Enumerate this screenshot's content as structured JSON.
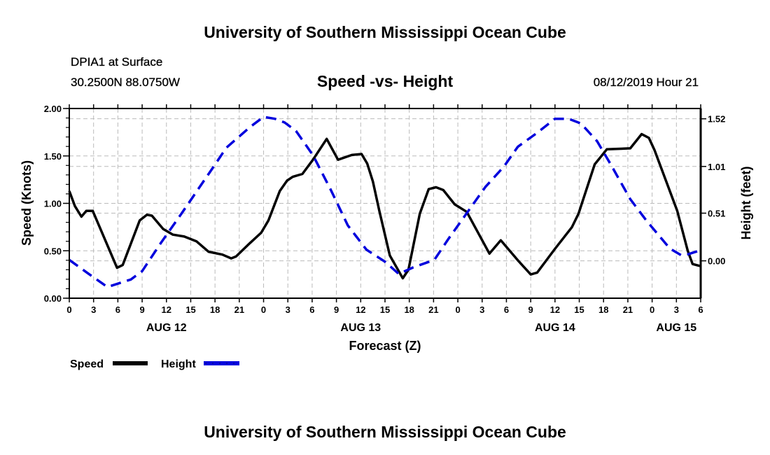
{
  "header": {
    "title": "University of Southern Mississippi Ocean Cube",
    "station": "DPIA1 at Surface",
    "location": "30.2500N 88.0750W",
    "subtitle": "Speed -vs- Height",
    "datetime": "08/12/2019 Hour 21"
  },
  "footer": {
    "title": "University of Southern Mississippi Ocean Cube"
  },
  "chart_data": {
    "type": "line",
    "title": "Speed -vs- Height",
    "xlabel": "Forecast (Z)",
    "ylabel": "Speed (Knots)",
    "y2label": "Height (feet)",
    "x_unit": "hours since AUG 12 00Z",
    "xlim": [
      0,
      78
    ],
    "ylim": [
      0,
      2.0
    ],
    "y2lim": [
      -0.4,
      1.63
    ],
    "grid": true,
    "legend_position": "bottom-left",
    "x_ticks": {
      "hours": [
        0,
        3,
        6,
        9,
        12,
        15,
        18,
        21,
        24,
        27,
        30,
        33,
        36,
        39,
        42,
        45,
        48,
        51,
        54,
        57,
        60,
        63,
        66,
        69,
        72,
        75,
        78
      ],
      "labels": [
        "0",
        "3",
        "6",
        "9",
        "12",
        "15",
        "18",
        "21",
        "0",
        "3",
        "6",
        "9",
        "12",
        "15",
        "18",
        "21",
        "0",
        "3",
        "6",
        "9",
        "12",
        "15",
        "18",
        "21",
        "0",
        "3",
        "6"
      ]
    },
    "day_labels": [
      {
        "label": "AUG 12",
        "hour": 12
      },
      {
        "label": "AUG 13",
        "hour": 36
      },
      {
        "label": "AUG 14",
        "hour": 60
      },
      {
        "label": "AUG 15",
        "hour": 75
      }
    ],
    "y_ticks": {
      "values": [
        0,
        0.5,
        1.0,
        1.5,
        2.0
      ],
      "labels": [
        "0.00",
        "0.50",
        "1.00",
        "1.50",
        "2.00"
      ]
    },
    "y2_ticks": {
      "values": [
        0,
        0.51,
        1.01,
        1.52
      ],
      "labels": [
        "0.00",
        "0.51",
        "1.01",
        "1.52"
      ]
    },
    "series": [
      {
        "name": "Speed",
        "axis": "left",
        "color": "#000000",
        "style": "solid",
        "x": [
          0,
          0.7,
          1.5,
          2.1,
          2.9,
          5.9,
          6.6,
          8.7,
          9.6,
          10.2,
          11.6,
          12.8,
          14.2,
          15.7,
          17.2,
          18.9,
          20.0,
          20.6,
          22.3,
          23.7,
          24.6,
          26.0,
          26.9,
          27.6,
          28.8,
          30.1,
          31.8,
          33.2,
          34.9,
          36.1,
          36.8,
          37.5,
          38.3,
          39.6,
          41.2,
          41.9,
          43.3,
          44.4,
          45.3,
          46.2,
          47.6,
          49.1,
          51.9,
          53.3,
          55.4,
          57.0,
          57.8,
          60.0,
          62.1,
          62.9,
          64.9,
          66.4,
          69.3,
          70.7,
          71.6,
          72.3,
          75.1,
          76.4,
          77.0,
          77.9
        ],
        "y": [
          1.13,
          0.97,
          0.86,
          0.92,
          0.92,
          0.32,
          0.35,
          0.82,
          0.88,
          0.87,
          0.73,
          0.67,
          0.65,
          0.6,
          0.49,
          0.46,
          0.42,
          0.44,
          0.58,
          0.69,
          0.82,
          1.13,
          1.24,
          1.28,
          1.31,
          1.46,
          1.68,
          1.46,
          1.51,
          1.52,
          1.42,
          1.23,
          0.92,
          0.45,
          0.21,
          0.3,
          0.89,
          1.15,
          1.17,
          1.14,
          0.99,
          0.91,
          0.47,
          0.61,
          0.4,
          0.25,
          0.27,
          0.52,
          0.75,
          0.89,
          1.41,
          1.57,
          1.58,
          1.73,
          1.69,
          1.56,
          0.92,
          0.5,
          0.36,
          0.34
        ]
      },
      {
        "name": "Height",
        "axis": "right",
        "color": "#0000dd",
        "style": "dashed",
        "x": [
          0,
          2.4,
          4.7,
          7.6,
          9.0,
          11.3,
          13.9,
          18.0,
          19.4,
          22.3,
          24.0,
          25.4,
          26.6,
          28.0,
          30.1,
          32.3,
          34.4,
          36.7,
          39.0,
          40.7,
          42.5,
          45.1,
          46.8,
          49.1,
          51.4,
          53.7,
          55.4,
          57.8,
          60.0,
          61.7,
          63.2,
          65.2,
          66.9,
          69.3,
          71.3,
          74.2,
          75.6,
          76.4,
          77.9
        ],
        "y": [
          0.01,
          -0.14,
          -0.28,
          -0.2,
          -0.11,
          0.19,
          0.51,
          1.03,
          1.21,
          1.43,
          1.54,
          1.52,
          1.48,
          1.39,
          1.13,
          0.76,
          0.38,
          0.12,
          -0.01,
          -0.14,
          -0.07,
          0.01,
          0.23,
          0.51,
          0.79,
          1.01,
          1.22,
          1.37,
          1.52,
          1.52,
          1.47,
          1.28,
          1.03,
          0.66,
          0.43,
          0.13,
          0.06,
          0.07,
          0.11
        ]
      }
    ]
  }
}
